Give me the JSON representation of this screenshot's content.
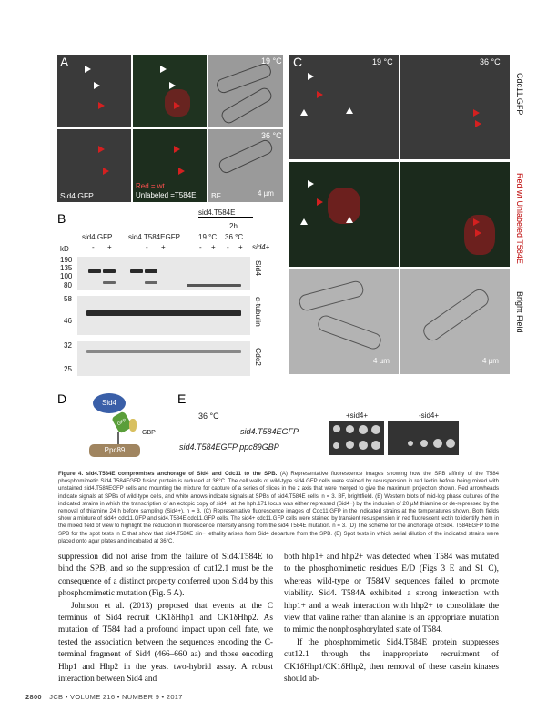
{
  "figure": {
    "panel_letters": [
      "A",
      "B",
      "C",
      "D",
      "E"
    ],
    "panel_a": {
      "temps": [
        "19 °C",
        "36 °C"
      ],
      "label_sid4": "Sid4.GFP",
      "label_red": "Red = wt",
      "label_unlabeled": "Unlabeled =T584E",
      "label_bf": "BF",
      "scale": "4 µm"
    },
    "panel_b": {
      "group_top": "sid4.T584E",
      "group_2h": "2h",
      "groups": [
        "sid4.GFP",
        "sid4.T584EGFP"
      ],
      "temps": [
        "19 °C",
        "36 °C"
      ],
      "lanes": [
        "-",
        "+",
        "-",
        "+",
        "-",
        "+",
        "-",
        "+"
      ],
      "sid4_marker": "sid4+",
      "kd_label": "kD",
      "markers_sid4": [
        "190",
        "135",
        "100",
        "80"
      ],
      "markers_tub": [
        "58",
        "46"
      ],
      "markers_cdc2": [
        "32",
        "25"
      ],
      "blot_labels": [
        "Sid4",
        "α-tubulin",
        "Cdc2"
      ]
    },
    "panel_c": {
      "temps": [
        "19 °C",
        "36 °C"
      ],
      "row_labels": [
        "Cdc11.GFP",
        "Red wt Unlabeled T584E",
        "Bright Field"
      ],
      "scale": "4 µm"
    },
    "panel_d": {
      "sid4": "Sid4",
      "gfp": "GFP",
      "gbp": "GBP",
      "ppc89": "Ppc89"
    },
    "panel_e": {
      "temp": "36 °C",
      "strains": [
        "sid4.T584EGFP",
        "sid4.T584EGFP ppc89GBP"
      ],
      "plates": [
        "+sid4+",
        "-sid4+"
      ]
    }
  },
  "caption": {
    "lead": "Figure 4.",
    "title": "sid4.T584E compromises anchorage of Sid4 and Cdc11 to the SPB.",
    "body": "(A) Representative fluorescence images showing how the SPB affinity of the T584 phosphomimetic Sid4.T584EGFP fusion protein is reduced at 36°C. The cell walls of wild-type sid4.GFP cells were stained by resuspension in red lectin before being mixed with unstained sid4.T584EGFP cells and mounting the mixture for capture of a series of slices in the z axis that were merged to give the maximum projection shown. Red arrowheads indicate signals at SPBs of wild-type cells, and white arrows indicate signals at SPBs of sid4.T584E cells. n = 3. BF, brightfield. (B) Western blots of mid-log phase cultures of the indicated strains in which the transcription of an ectopic copy of sid4+ at the hph.171 locus was either repressed (Sid4−) by the inclusion of 20 µM thiamine or de-repressed by the removal of thiamine 24 h before sampling (Sid4+). n = 3. (C) Representative fluorescence images of Cdc11.GFP in the indicated strains at the temperatures shown. Both fields show a mixture of sid4+ cdc11.GFP and sid4.T584E cdc11.GFP cells. The sid4+ cdc11.GFP cells were stained by transient resuspension in red fluorescent lectin to identify them in the mixed field of view to highlight the reduction in fluorescence intensity arising from the sid4.T584E mutation. n = 3. (D) The scheme for the anchorage of Sid4. T584EGFP to the SPB for the spot tests in E that show that sid4.T584E sin− lethality arises from Sid4 departure from the SPB. (E) Spot tests in which serial dilution of the indicated strains were placed onto agar plates and incubated at 36°C."
  },
  "body_text": {
    "col1_p1": "suppression did not arise from the failure of Sid4.T584E to bind the SPB, and so the suppression of cut12.1 must be the consequence of a distinct property conferred upon Sid4 by this phosphomimetic mutation (Fig. 5 A).",
    "col1_p2": "Johnson et al. (2013) proposed that events at the C terminus of Sid4 recruit CK1δHhp1 and CK1δHhp2. As mutation of T584 had a profound impact upon cell fate, we tested the association between the sequences encoding the C-terminal fragment of Sid4 (466–660 aa) and those encoding Hhp1 and Hhp2 in the yeast two-hybrid assay. A robust interaction between Sid4 and",
    "col2_p1": "both hhp1+ and hhp2+ was detected when T584 was mutated to the phosphomimetic residues E/D (Figs 3 E and S1 C), whereas wild-type or T584V sequences failed to promote viability. Sid4. T584A exhibited a strong interaction with hhp1+ and a weak interaction with hhp2+ to consolidate the view that valine rather than alanine is an appropriate mutation to mimic the nonphosphorylated state of T584.",
    "col2_p2": "If the phosphomimetic Sid4.T584E protein suppresses cut12.1 through the inappropriate recruitment of CK1δHhp1/CK1δHhp2, then removal of these casein kinases should ab-"
  },
  "footer": {
    "page": "2800",
    "journal": "JCB • VOLUME 216 • NUMBER 9 • 2017"
  }
}
